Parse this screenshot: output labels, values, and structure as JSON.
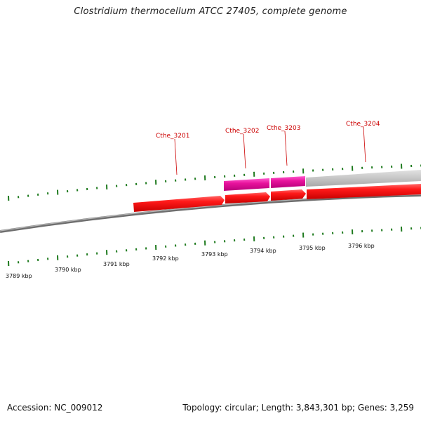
{
  "title": "Clostridium thermocellum ATCC 27405, complete genome",
  "footer": {
    "accession": "Accession: NC_009012",
    "summary": "Topology: circular; Length: 3,843,301 bp; Genes: 3,259"
  },
  "colors": {
    "tick": "#1e7a1e",
    "backbone": "#808080",
    "gene_red": "#ee0000",
    "gene_magenta": "#e0139a",
    "gene_grey": "#bdbdbd",
    "label_red": "#cc0000"
  },
  "scale": {
    "unit": "kbp",
    "labels": [
      "3789 kbp",
      "3790 kbp",
      "3791 kbp",
      "3792 kbp",
      "3793 kbp",
      "3794 kbp",
      "3795 kbp",
      "3796 kbp"
    ]
  },
  "genes": [
    {
      "locus": "Cthe_3201",
      "strand": "+",
      "color": "red"
    },
    {
      "locus": "Cthe_3202",
      "strand": "+",
      "color": "red",
      "overlay": "magenta"
    },
    {
      "locus": "Cthe_3203",
      "strand": "+",
      "color": "red",
      "overlay": "magenta"
    },
    {
      "locus": "Cthe_3204",
      "strand": "+",
      "color": "red",
      "overlay": "grey"
    }
  ]
}
